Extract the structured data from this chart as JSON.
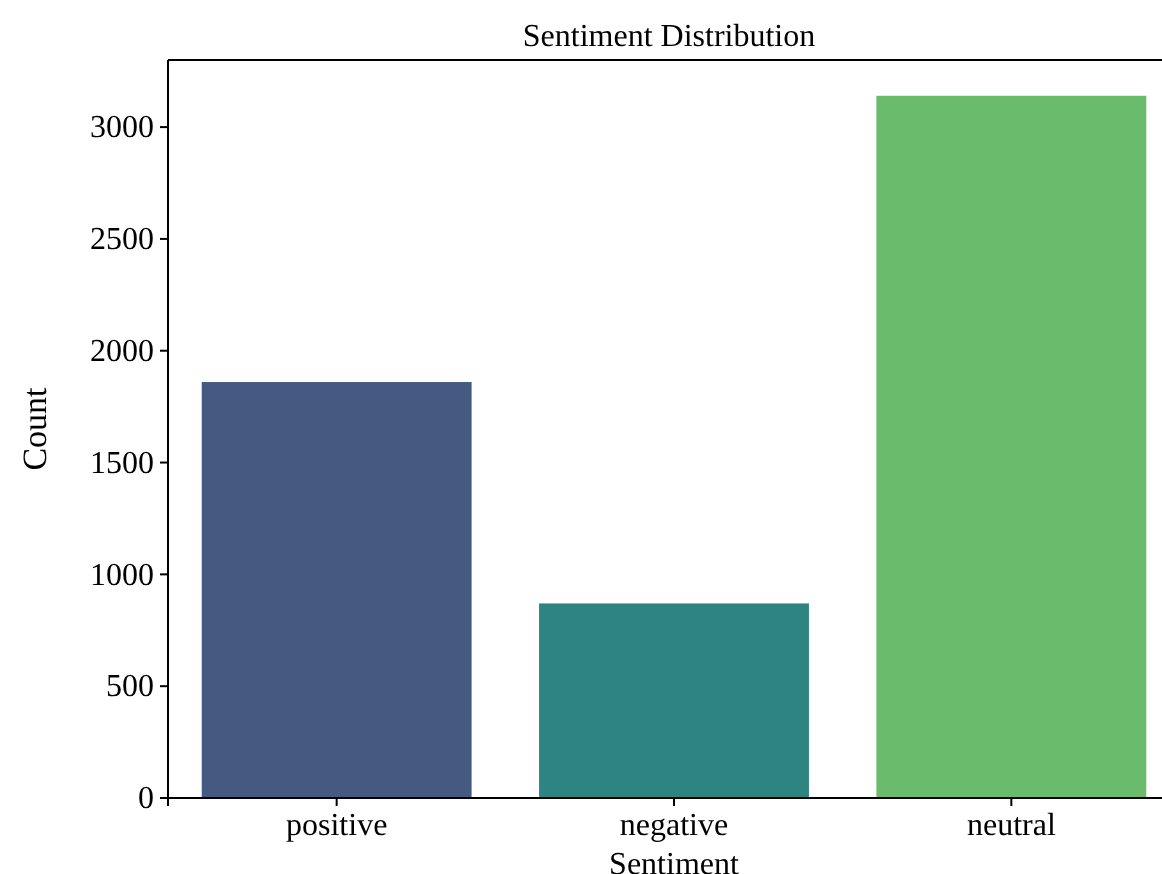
{
  "chart_data": {
    "type": "bar",
    "title": "Sentiment Distribution",
    "xlabel": "Sentiment",
    "ylabel": "Count",
    "categories": [
      "positive",
      "negative",
      "neutral"
    ],
    "values": [
      1860,
      870,
      3140
    ],
    "colors": [
      "#455a80",
      "#2e8480",
      "#6bbb6d"
    ],
    "ylim": [
      0,
      3300
    ],
    "yticks": [
      0,
      500,
      1000,
      1500,
      2000,
      2500,
      3000
    ],
    "grid": false
  }
}
